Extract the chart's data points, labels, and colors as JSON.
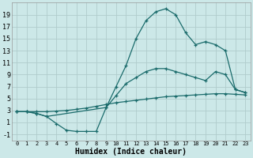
{
  "xlabel": "Humidex (Indice chaleur)",
  "bg_color": "#cce8e8",
  "grid_color": "#b0cccc",
  "line_color": "#1a6b6b",
  "xlim": [
    -0.5,
    23.5
  ],
  "ylim": [
    -2.0,
    21.0
  ],
  "xticks": [
    0,
    1,
    2,
    3,
    4,
    5,
    6,
    7,
    8,
    9,
    10,
    11,
    12,
    13,
    14,
    15,
    16,
    17,
    18,
    19,
    20,
    21,
    22,
    23
  ],
  "yticks": [
    -1,
    1,
    3,
    5,
    7,
    9,
    11,
    13,
    15,
    17,
    19
  ],
  "curve_bot_x": [
    0,
    1,
    2,
    3,
    4,
    5,
    6,
    7,
    8,
    9,
    10,
    11,
    12,
    13,
    14,
    15,
    16,
    17,
    18,
    19,
    20,
    21,
    22,
    23
  ],
  "curve_bot_y": [
    2.8,
    2.8,
    2.8,
    2.8,
    2.9,
    3.0,
    3.2,
    3.4,
    3.7,
    4.0,
    4.3,
    4.5,
    4.7,
    4.9,
    5.1,
    5.3,
    5.4,
    5.5,
    5.6,
    5.7,
    5.8,
    5.8,
    5.7,
    5.6
  ],
  "curve_mid_x": [
    0,
    1,
    2,
    3,
    4,
    5,
    6,
    7,
    8,
    9,
    10,
    11,
    12,
    13,
    14,
    15,
    16,
    17,
    18,
    19,
    20,
    21,
    22,
    23
  ],
  "curve_mid_y": [
    2.8,
    2.8,
    2.5,
    2.0,
    0.8,
    -0.3,
    -0.5,
    -0.5,
    -0.5,
    3.5,
    5.5,
    7.5,
    8.5,
    9.5,
    10.0,
    10.0,
    9.5,
    9.0,
    8.5,
    8.0,
    9.5,
    9.0,
    6.5,
    6.0
  ],
  "curve_top_x": [
    0,
    1,
    2,
    3,
    9,
    10,
    11,
    12,
    13,
    14,
    15,
    16,
    17,
    18,
    19,
    20,
    21,
    22,
    23
  ],
  "curve_top_y": [
    2.8,
    2.8,
    2.5,
    2.0,
    3.5,
    7.0,
    10.5,
    15.0,
    18.0,
    19.5,
    20.0,
    19.0,
    16.0,
    14.0,
    14.5,
    14.0,
    13.0,
    6.5,
    6.0
  ]
}
